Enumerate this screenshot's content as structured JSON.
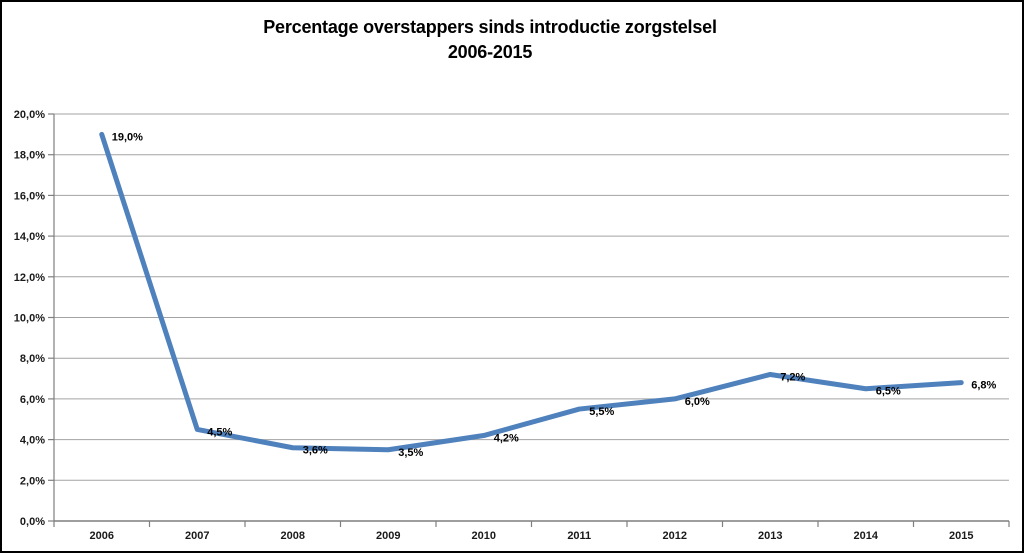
{
  "window": {
    "background": "#ffffff",
    "frame_border_color": "#000000"
  },
  "chart_data": {
    "type": "line",
    "title": "Percentage overstappers sinds introductie zorgstelsel",
    "subtitle": "2006-2015",
    "categories": [
      "2006",
      "2007",
      "2008",
      "2009",
      "2010",
      "2011",
      "2012",
      "2013",
      "2014",
      "2015"
    ],
    "series": [
      {
        "values": [
          19.0,
          4.5,
          3.6,
          3.5,
          4.2,
          5.5,
          6.0,
          7.2,
          6.5,
          6.8
        ],
        "point_labels": [
          "19,0%",
          "4,5%",
          "3,6%",
          "3,5%",
          "4,2%",
          "5,5%",
          "6,0%",
          "7,2%",
          "6,5%",
          "6,8%"
        ]
      }
    ],
    "xlabel": "",
    "ylabel": "",
    "ylim": [
      0,
      20
    ],
    "ytick_step": 2,
    "ytick_labels": [
      "0,0%",
      "2,0%",
      "4,0%",
      "6,0%",
      "8,0%",
      "10,0%",
      "12,0%",
      "14,0%",
      "16,0%",
      "18,0%",
      "20,0%"
    ],
    "grid": true,
    "legend": "none",
    "colors": {
      "line": "#4f81bd",
      "gridline": "#a3a3a3",
      "axis": "#7f7f7f",
      "text": "#1a1a1a",
      "title": "#000000"
    }
  }
}
